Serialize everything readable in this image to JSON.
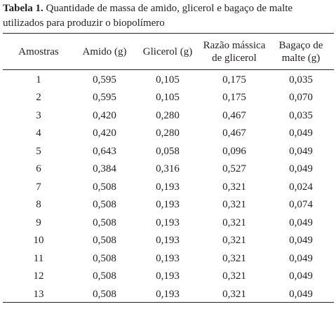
{
  "caption": {
    "label": "Tabela 1.",
    "text": " Quantidade de massa de amido, glicerol e bagaço de malte utilizados para produzir o biopolímero"
  },
  "table": {
    "headers": [
      [
        "Amostras"
      ],
      [
        "Amido (g)"
      ],
      [
        "Glicerol (g)"
      ],
      [
        "Razão mássica",
        "de glicerol"
      ],
      [
        "Bagaço de",
        "malte (g)"
      ]
    ],
    "rows": [
      [
        "1",
        "0,595",
        "0,105",
        "0,175",
        "0,035"
      ],
      [
        "2",
        "0,595",
        "0,105",
        "0,175",
        "0,070"
      ],
      [
        "3",
        "0,420",
        "0,280",
        "0,467",
        "0,035"
      ],
      [
        "4",
        "0,420",
        "0,280",
        "0,467",
        "0,049"
      ],
      [
        "5",
        "0,643",
        "0,058",
        "0,096",
        "0,049"
      ],
      [
        "6",
        "0,384",
        "0,316",
        "0,527",
        "0,049"
      ],
      [
        "7",
        "0,508",
        "0,193",
        "0,321",
        "0,024"
      ],
      [
        "8",
        "0,508",
        "0,193",
        "0,321",
        "0,074"
      ],
      [
        "9",
        "0,508",
        "0,193",
        "0,321",
        "0,049"
      ],
      [
        "10",
        "0,508",
        "0,193",
        "0,321",
        "0,049"
      ],
      [
        "11",
        "0,508",
        "0,193",
        "0,321",
        "0,049"
      ],
      [
        "12",
        "0,508",
        "0,193",
        "0,321",
        "0,049"
      ],
      [
        "13",
        "0,508",
        "0,193",
        "0,321",
        "0,049"
      ]
    ]
  }
}
